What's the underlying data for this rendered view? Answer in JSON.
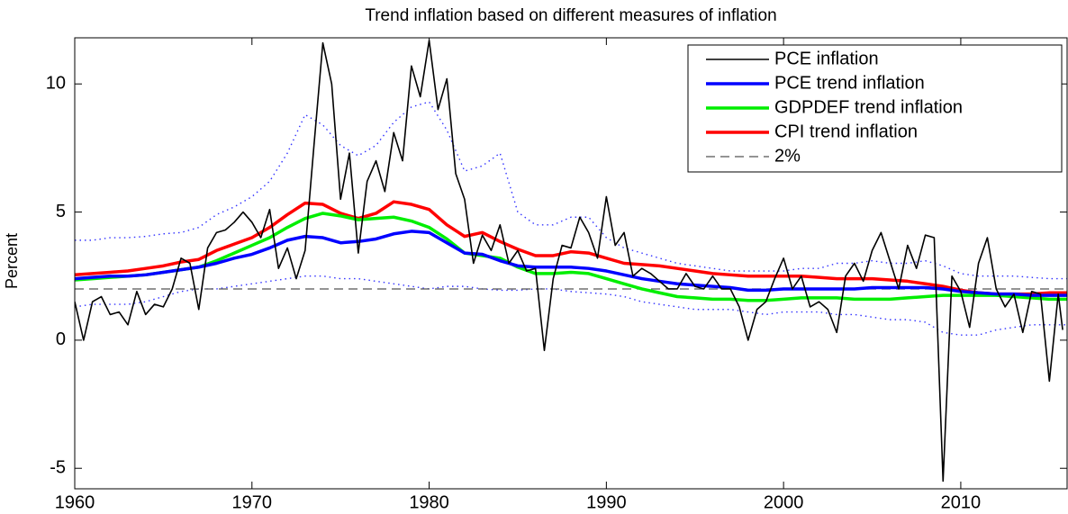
{
  "chart_data": {
    "type": "line",
    "title": "Trend inflation based on different measures of inflation",
    "y_label": "Percent",
    "xlim": [
      1960,
      2016
    ],
    "xticks": [
      1960,
      1970,
      1980,
      1990,
      2000,
      2010
    ],
    "ylim": [
      -5.8,
      11.8
    ],
    "yticks": [
      -5,
      0,
      5,
      10
    ],
    "grid": false,
    "legend": "northeast",
    "series": [
      {
        "name": "PCE inflation",
        "color": "#000000",
        "width": 1.6,
        "dash": "solid",
        "x": [
          1960,
          1960.5,
          1961,
          1961.5,
          1962,
          1962.5,
          1963,
          1963.5,
          1964,
          1964.5,
          1965,
          1965.5,
          1966,
          1966.5,
          1967,
          1967.5,
          1968,
          1968.5,
          1969,
          1969.5,
          1970,
          1970.5,
          1971,
          1971.5,
          1972,
          1972.5,
          1973,
          1973.5,
          1974,
          1974.5,
          1975,
          1975.5,
          1976,
          1976.5,
          1977,
          1977.5,
          1978,
          1978.5,
          1979,
          1979.5,
          1980,
          1980.5,
          1981,
          1981.5,
          1982,
          1982.5,
          1983,
          1983.5,
          1984,
          1984.5,
          1985,
          1985.5,
          1986,
          1986.5,
          1987,
          1987.5,
          1988,
          1988.5,
          1989,
          1989.5,
          1990,
          1990.5,
          1991,
          1991.5,
          1992,
          1992.5,
          1993,
          1993.5,
          1994,
          1994.5,
          1995,
          1995.5,
          1996,
          1996.5,
          1997,
          1997.5,
          1998,
          1998.5,
          1999,
          1999.5,
          2000,
          2000.5,
          2001,
          2001.5,
          2002,
          2002.5,
          2003,
          2003.5,
          2004,
          2004.5,
          2005,
          2005.5,
          2006,
          2006.5,
          2007,
          2007.5,
          2008,
          2008.5,
          2009,
          2009.5,
          2010,
          2010.5,
          2011,
          2011.5,
          2012,
          2012.5,
          2013,
          2013.5,
          2014,
          2014.5,
          2015,
          2015.5,
          2015.75
        ],
        "values": [
          1.5,
          0.0,
          1.5,
          1.7,
          1.0,
          1.1,
          0.6,
          1.9,
          1.0,
          1.4,
          1.3,
          2.0,
          3.2,
          3.0,
          1.2,
          3.6,
          4.2,
          4.3,
          4.6,
          5.0,
          4.6,
          4.0,
          5.1,
          2.8,
          3.6,
          2.4,
          3.5,
          7.6,
          11.6,
          10.0,
          5.5,
          7.3,
          3.4,
          6.2,
          7.0,
          5.8,
          8.1,
          7.0,
          10.7,
          9.5,
          11.7,
          9.0,
          10.2,
          6.5,
          5.5,
          3.0,
          4.1,
          3.5,
          4.5,
          3.0,
          3.5,
          2.7,
          2.8,
          -0.4,
          2.4,
          3.7,
          3.6,
          4.8,
          4.2,
          3.2,
          5.6,
          3.7,
          4.2,
          2.5,
          2.8,
          2.6,
          2.3,
          2.0,
          2.0,
          2.6,
          2.1,
          2.0,
          2.5,
          2.0,
          2.0,
          1.3,
          0.0,
          1.2,
          1.5,
          2.4,
          3.2,
          2.0,
          2.5,
          1.3,
          1.5,
          1.2,
          0.3,
          2.5,
          3.0,
          2.3,
          3.5,
          4.2,
          3.1,
          2.0,
          3.7,
          2.8,
          4.1,
          4.0,
          -5.5,
          2.5,
          1.9,
          0.5,
          3.0,
          4.0,
          2.0,
          1.3,
          1.8,
          0.3,
          1.9,
          1.8,
          -1.6,
          1.8,
          0.4
        ]
      },
      {
        "name": "PCE trend inflation",
        "color": "#0000ff",
        "width": 3.5,
        "dash": "solid",
        "x": [
          1960,
          1961,
          1962,
          1963,
          1964,
          1965,
          1966,
          1967,
          1968,
          1969,
          1970,
          1971,
          1972,
          1973,
          1974,
          1975,
          1976,
          1977,
          1978,
          1979,
          1980,
          1981,
          1982,
          1983,
          1984,
          1985,
          1986,
          1987,
          1988,
          1989,
          1990,
          1991,
          1992,
          1993,
          1994,
          1995,
          1996,
          1997,
          1998,
          1999,
          2000,
          2001,
          2002,
          2003,
          2004,
          2005,
          2006,
          2007,
          2008,
          2009,
          2010,
          2011,
          2012,
          2013,
          2014,
          2015,
          2016
        ],
        "values": [
          2.4,
          2.45,
          2.5,
          2.5,
          2.55,
          2.65,
          2.75,
          2.85,
          3.0,
          3.2,
          3.35,
          3.6,
          3.9,
          4.05,
          4.0,
          3.8,
          3.85,
          3.95,
          4.15,
          4.25,
          4.2,
          3.8,
          3.4,
          3.35,
          3.1,
          2.9,
          2.85,
          2.85,
          2.85,
          2.8,
          2.7,
          2.55,
          2.4,
          2.3,
          2.2,
          2.15,
          2.1,
          2.05,
          1.95,
          1.95,
          2.0,
          2.0,
          2.0,
          2.0,
          2.0,
          2.05,
          2.05,
          2.05,
          2.05,
          2.0,
          1.9,
          1.85,
          1.8,
          1.8,
          1.75,
          1.75,
          1.75
        ]
      },
      {
        "name": "GDPDEF trend inflation",
        "color": "#00ee00",
        "width": 3.5,
        "dash": "solid",
        "x": [
          1960,
          1961,
          1962,
          1963,
          1964,
          1965,
          1966,
          1967,
          1968,
          1969,
          1970,
          1971,
          1972,
          1973,
          1974,
          1975,
          1976,
          1977,
          1978,
          1979,
          1980,
          1981,
          1982,
          1983,
          1984,
          1985,
          1986,
          1987,
          1988,
          1989,
          1990,
          1991,
          1992,
          1993,
          1994,
          1995,
          1996,
          1997,
          1998,
          1999,
          2000,
          2001,
          2002,
          2003,
          2004,
          2005,
          2006,
          2007,
          2008,
          2009,
          2010,
          2011,
          2012,
          2013,
          2014,
          2015,
          2016
        ],
        "values": [
          2.35,
          2.4,
          2.45,
          2.5,
          2.55,
          2.65,
          2.75,
          2.85,
          3.1,
          3.4,
          3.7,
          4.0,
          4.4,
          4.75,
          4.95,
          4.85,
          4.7,
          4.75,
          4.8,
          4.65,
          4.4,
          3.95,
          3.4,
          3.3,
          3.2,
          2.85,
          2.6,
          2.6,
          2.65,
          2.6,
          2.4,
          2.2,
          2.0,
          1.85,
          1.7,
          1.65,
          1.6,
          1.6,
          1.55,
          1.55,
          1.6,
          1.65,
          1.65,
          1.65,
          1.6,
          1.6,
          1.6,
          1.65,
          1.7,
          1.75,
          1.75,
          1.75,
          1.75,
          1.7,
          1.65,
          1.6,
          1.6
        ]
      },
      {
        "name": "CPI trend inflation",
        "color": "#ff0000",
        "width": 3.5,
        "dash": "solid",
        "x": [
          1960,
          1961,
          1962,
          1963,
          1964,
          1965,
          1966,
          1967,
          1968,
          1969,
          1970,
          1971,
          1972,
          1973,
          1974,
          1975,
          1976,
          1977,
          1978,
          1979,
          1980,
          1981,
          1982,
          1983,
          1984,
          1985,
          1986,
          1987,
          1988,
          1989,
          1990,
          1991,
          1992,
          1993,
          1994,
          1995,
          1996,
          1997,
          1998,
          1999,
          2000,
          2001,
          2002,
          2003,
          2004,
          2005,
          2006,
          2007,
          2008,
          2009,
          2010,
          2011,
          2012,
          2013,
          2014,
          2015,
          2016
        ],
        "values": [
          2.55,
          2.6,
          2.65,
          2.7,
          2.8,
          2.9,
          3.05,
          3.15,
          3.5,
          3.75,
          4.0,
          4.4,
          4.9,
          5.35,
          5.3,
          4.95,
          4.75,
          4.95,
          5.4,
          5.3,
          5.1,
          4.5,
          4.05,
          4.2,
          3.85,
          3.55,
          3.3,
          3.3,
          3.45,
          3.4,
          3.2,
          3.0,
          2.95,
          2.9,
          2.8,
          2.7,
          2.6,
          2.55,
          2.5,
          2.5,
          2.5,
          2.5,
          2.45,
          2.4,
          2.4,
          2.4,
          2.35,
          2.3,
          2.2,
          2.1,
          1.95,
          1.85,
          1.8,
          1.8,
          1.8,
          1.85,
          1.85
        ]
      },
      {
        "name": "2%",
        "color": "#555555",
        "width": 1.2,
        "dash": "dashed",
        "x": [
          1960,
          2016
        ],
        "values": [
          2,
          2
        ]
      },
      {
        "color": "#3333ff",
        "width": 1.4,
        "dash": "dotted",
        "x": [
          1960,
          1961,
          1962,
          1963,
          1964,
          1965,
          1966,
          1967,
          1968,
          1969,
          1970,
          1971,
          1972,
          1973,
          1974,
          1975,
          1976,
          1977,
          1978,
          1979,
          1980,
          1981,
          1982,
          1983,
          1984,
          1985,
          1986,
          1987,
          1988,
          1989,
          1990,
          1991,
          1992,
          1993,
          1994,
          1995,
          1996,
          1997,
          1998,
          1999,
          2000,
          2001,
          2002,
          2003,
          2004,
          2005,
          2006,
          2007,
          2008,
          2009,
          2010,
          2011,
          2012,
          2013,
          2014,
          2015,
          2016
        ],
        "values": [
          3.9,
          3.9,
          4.0,
          4.0,
          4.05,
          4.15,
          4.2,
          4.4,
          4.9,
          5.2,
          5.6,
          6.2,
          7.3,
          8.8,
          8.4,
          7.6,
          7.2,
          7.6,
          8.5,
          9.1,
          9.3,
          8.2,
          6.6,
          6.8,
          7.3,
          5.0,
          4.5,
          4.5,
          4.8,
          4.8,
          4.0,
          3.6,
          3.4,
          3.2,
          3.0,
          2.9,
          2.8,
          2.7,
          2.7,
          2.7,
          2.7,
          2.8,
          2.8,
          3.0,
          3.0,
          3.1,
          3.0,
          3.0,
          3.1,
          2.9,
          2.6,
          2.5,
          2.5,
          2.5,
          2.45,
          2.4,
          2.4
        ]
      },
      {
        "color": "#3333ff",
        "width": 1.4,
        "dash": "dotted",
        "x": [
          1960,
          1961,
          1962,
          1963,
          1964,
          1965,
          1966,
          1967,
          1968,
          1969,
          1970,
          1971,
          1972,
          1973,
          1974,
          1975,
          1976,
          1977,
          1978,
          1979,
          1980,
          1981,
          1982,
          1983,
          1984,
          1985,
          1986,
          1987,
          1988,
          1989,
          1990,
          1991,
          1992,
          1993,
          1994,
          1995,
          1996,
          1997,
          1998,
          1999,
          2000,
          2001,
          2002,
          2003,
          2004,
          2005,
          2006,
          2007,
          2008,
          2009,
          2010,
          2011,
          2012,
          2013,
          2014,
          2015,
          2016
        ],
        "values": [
          1.3,
          1.4,
          1.4,
          1.4,
          1.5,
          1.7,
          1.9,
          2.0,
          2.0,
          2.1,
          2.2,
          2.3,
          2.4,
          2.5,
          2.5,
          2.4,
          2.4,
          2.3,
          2.2,
          2.1,
          2.0,
          2.1,
          2.1,
          2.0,
          1.95,
          1.95,
          2.0,
          2.0,
          1.9,
          1.85,
          1.8,
          1.7,
          1.5,
          1.4,
          1.3,
          1.2,
          1.2,
          1.2,
          1.1,
          1.0,
          1.1,
          1.1,
          1.1,
          1.0,
          1.0,
          0.9,
          0.8,
          0.8,
          0.7,
          0.3,
          0.2,
          0.2,
          0.4,
          0.5,
          0.6,
          0.6,
          0.6
        ]
      }
    ]
  }
}
